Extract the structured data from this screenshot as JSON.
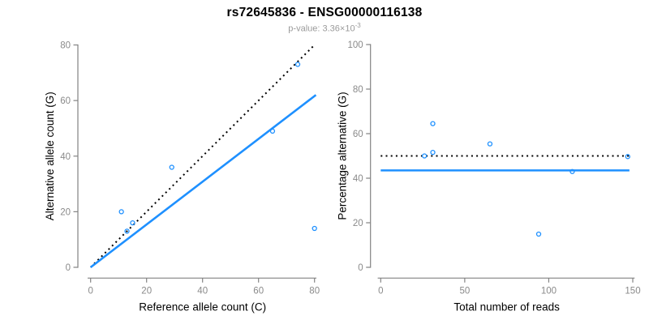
{
  "header": {
    "title": "rs72645836 - ENSG00000116138",
    "subtitle_prefix": "p-value: ",
    "subtitle_value": "3.36×10",
    "subtitle_exponent": "-3"
  },
  "colors": {
    "point_and_fit_blue": "#1E90FF",
    "reference_black": "#000000",
    "axis_line_gray": "#838383",
    "tick_label_gray": "#8A8A8A",
    "axis_title_color": "#000000",
    "subtitle_gray": "#9A9A9A",
    "background": "#FFFFFF"
  },
  "chart_data": [
    {
      "type": "scatter",
      "panel": "allele-counts",
      "title": "",
      "xlabel": "Reference allele count (C)",
      "ylabel": "Alternative allele count (G)",
      "xlim": [
        0,
        80
      ],
      "ylim": [
        0,
        80
      ],
      "xticks": [
        0,
        20,
        40,
        60,
        80
      ],
      "yticks": [
        0,
        20,
        40,
        60,
        80
      ],
      "grid": false,
      "legend": "none",
      "points": [
        [
          11,
          20
        ],
        [
          13,
          13
        ],
        [
          15,
          16
        ],
        [
          29,
          36
        ],
        [
          65,
          49
        ],
        [
          74,
          73
        ],
        [
          80,
          14
        ]
      ],
      "lines": [
        {
          "name": "identity-line",
          "style": "dotted",
          "color_key": "reference_black",
          "from": [
            0,
            0
          ],
          "to": [
            80,
            80
          ]
        },
        {
          "name": "fit-line",
          "style": "solid",
          "color_key": "point_and_fit_blue",
          "from": [
            0,
            0
          ],
          "to": [
            80.5,
            62
          ]
        }
      ]
    },
    {
      "type": "scatter",
      "panel": "percentage-vs-reads",
      "title": "",
      "xlabel": "Total number of reads",
      "ylabel": "Percentage alternative (G)",
      "xlim": [
        0,
        150
      ],
      "ylim": [
        0,
        100
      ],
      "xticks": [
        0,
        50,
        100,
        150
      ],
      "yticks": [
        0,
        20,
        40,
        60,
        80,
        100
      ],
      "grid": false,
      "legend": "none",
      "points": [
        [
          31,
          64.5
        ],
        [
          26,
          50
        ],
        [
          31,
          51.6
        ],
        [
          65,
          55.4
        ],
        [
          114,
          43
        ],
        [
          147,
          49.7
        ],
        [
          94,
          14.9
        ]
      ],
      "lines": [
        {
          "name": "expected-percentage-line",
          "style": "dotted",
          "color_key": "reference_black",
          "from": [
            0,
            50
          ],
          "to": [
            148,
            50
          ]
        },
        {
          "name": "mean-percentage-line",
          "style": "solid",
          "color_key": "point_and_fit_blue",
          "from": [
            0,
            43.5
          ],
          "to": [
            148,
            43.5
          ]
        }
      ]
    }
  ]
}
